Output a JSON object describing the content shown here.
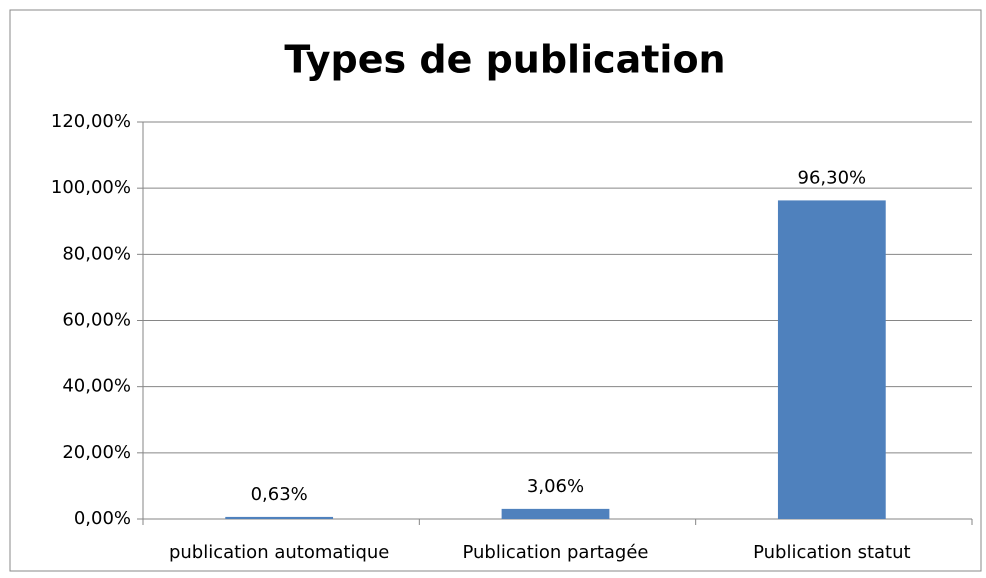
{
  "chart_data": {
    "type": "bar",
    "title": "Types de publication",
    "categories": [
      "publication automatique",
      "Publication partagée",
      "Publication statut"
    ],
    "values": [
      0.63,
      3.06,
      96.3
    ],
    "value_labels": [
      "0,63%",
      "3,06%",
      "96,30%"
    ],
    "color": "#4f81bd",
    "ylim": [
      0,
      120
    ],
    "yticks": [
      {
        "value": 0,
        "label": "0,00%"
      },
      {
        "value": 20,
        "label": "20,00%"
      },
      {
        "value": 40,
        "label": "40,00%"
      },
      {
        "value": 60,
        "label": "60,00%"
      },
      {
        "value": 80,
        "label": "80,00%"
      },
      {
        "value": 100,
        "label": "100,00%"
      },
      {
        "value": 120,
        "label": "120,00%"
      }
    ],
    "grid": true
  }
}
